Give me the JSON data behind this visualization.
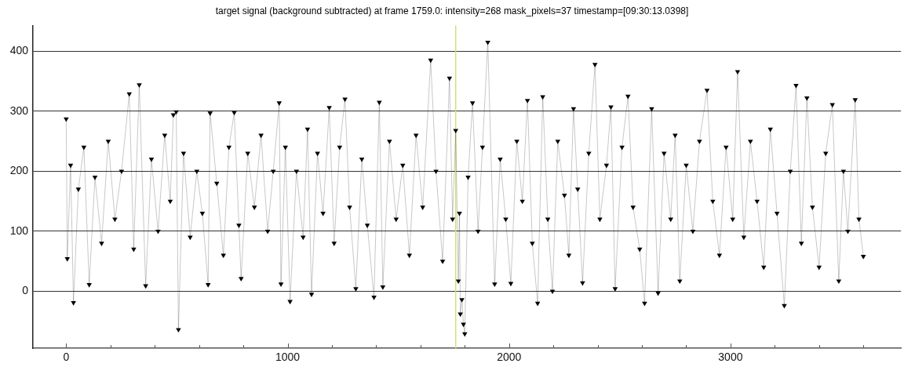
{
  "chart_data": {
    "type": "line",
    "title": "target signal (background subtracted) at frame 1759.0: intensity=268 mask_pixels=37 timestamp=[09:30:13.0398]",
    "x": [
      0,
      5,
      20,
      33,
      55,
      80,
      104,
      130,
      160,
      190,
      220,
      250,
      285,
      305,
      330,
      359,
      385,
      415,
      445,
      470,
      484,
      497,
      507,
      530,
      560,
      590,
      615,
      641,
      650,
      680,
      710,
      735,
      759,
      780,
      790,
      820,
      850,
      880,
      910,
      935,
      962,
      970,
      990,
      1011,
      1040,
      1070,
      1090,
      1108,
      1135,
      1160,
      1188,
      1210,
      1235,
      1259,
      1280,
      1308,
      1335,
      1360,
      1390,
      1414,
      1430,
      1460,
      1490,
      1520,
      1550,
      1580,
      1610,
      1646,
      1670,
      1700,
      1731,
      1745,
      1759,
      1771,
      1776,
      1780,
      1787,
      1794,
      1800,
      1815,
      1835,
      1860,
      1880,
      1904,
      1935,
      1960,
      1985,
      2008,
      2035,
      2060,
      2083,
      2105,
      2129,
      2152,
      2175,
      2196,
      2220,
      2250,
      2270,
      2291,
      2310,
      2332,
      2360,
      2388,
      2410,
      2440,
      2460,
      2479,
      2510,
      2537,
      2560,
      2590,
      2612,
      2644,
      2673,
      2700,
      2730,
      2750,
      2771,
      2800,
      2830,
      2860,
      2894,
      2920,
      2950,
      2980,
      3010,
      3032,
      3060,
      3090,
      3120,
      3150,
      3180,
      3210,
      3243,
      3270,
      3296,
      3320,
      3345,
      3370,
      3400,
      3430,
      3460,
      3489,
      3510,
      3530,
      3563,
      3580,
      3600
    ],
    "series": [
      {
        "color": "#000000",
        "values": [
          287,
          54,
          210,
          -19,
          170,
          240,
          11,
          190,
          80,
          250,
          120,
          200,
          329,
          70,
          344,
          9,
          220,
          100,
          260,
          150,
          294,
          299,
          -64,
          230,
          90,
          200,
          130,
          11,
          297,
          180,
          60,
          240,
          298,
          110,
          21,
          230,
          140,
          260,
          100,
          200,
          314,
          12,
          240,
          -17,
          200,
          90,
          270,
          -5,
          230,
          130,
          306,
          80,
          240,
          320,
          140,
          4,
          220,
          110,
          -10,
          315,
          7,
          250,
          120,
          210,
          60,
          260,
          140,
          385,
          200,
          50,
          355,
          120,
          268,
          17,
          130,
          -38,
          -14,
          -55,
          -71,
          190,
          314,
          100,
          240,
          415,
          12,
          220,
          120,
          13,
          250,
          150,
          318,
          80,
          -20,
          324,
          120,
          0,
          250,
          160,
          60,
          304,
          170,
          14,
          230,
          378,
          120,
          210,
          307,
          4,
          240,
          325,
          140,
          70,
          -20,
          304,
          -3,
          230,
          120,
          260,
          17,
          210,
          100,
          250,
          335,
          150,
          60,
          240,
          120,
          366,
          90,
          250,
          150,
          40,
          270,
          130,
          -24,
          200,
          343,
          80,
          322,
          140,
          40,
          230,
          311,
          17,
          200,
          100,
          319,
          120,
          58
        ]
      }
    ],
    "xlim": [
      -150,
      3770
    ],
    "ylim": [
      -95,
      443
    ],
    "xticks": [
      0,
      {
        "value": 200,
        "label": null
      },
      {
        "value": 400,
        "label": null
      },
      {
        "value": 600,
        "label": null
      },
      {
        "value": 800,
        "label": null
      },
      1000,
      {
        "value": 1200,
        "label": null
      },
      {
        "value": 1400,
        "label": null
      },
      {
        "value": 1600,
        "label": null
      },
      {
        "value": 1800,
        "label": null
      },
      2000,
      {
        "value": 2200,
        "label": null
      },
      {
        "value": 2400,
        "label": null
      },
      {
        "value": 2600,
        "label": null
      },
      {
        "value": 2800,
        "label": null
      },
      3000,
      {
        "value": 3200,
        "label": null
      },
      {
        "value": 3400,
        "label": null
      },
      {
        "value": 3600,
        "label": null
      }
    ],
    "yticks": [
      0,
      100,
      200,
      300,
      400
    ],
    "ref_lines": [
      {
        "axis": "x",
        "value": 1759,
        "color": "#d6dc7e"
      }
    ],
    "grid": "y",
    "marker": "triangle",
    "line_style": "solid"
  }
}
